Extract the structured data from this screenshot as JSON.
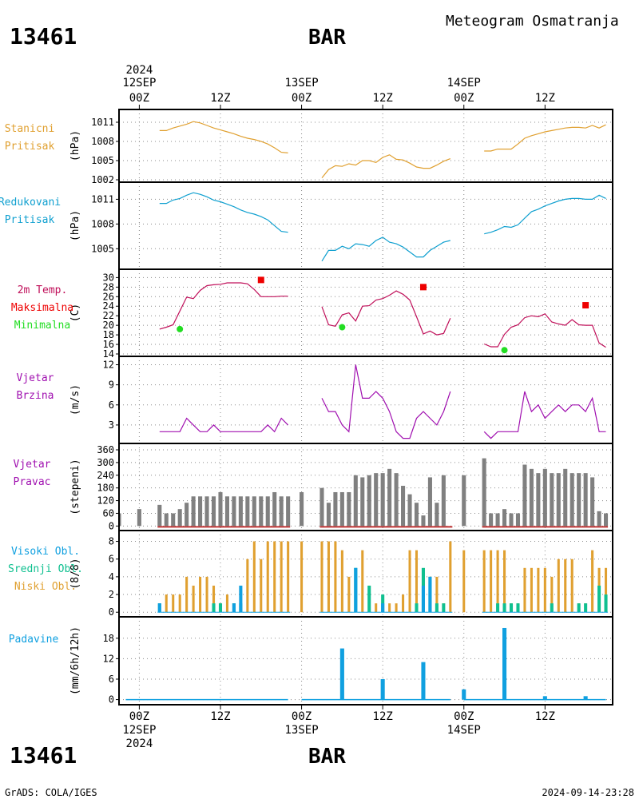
{
  "header": {
    "station_id": "13461",
    "station_name": "BAR",
    "subtitle": "Meteogram Osmatranja"
  },
  "footer": {
    "credit": "GrADS: COLA/IGES",
    "timestamp": "2024-09-14-23:28"
  },
  "time_axis": {
    "year_label": "2024",
    "tick_labels": [
      "00Z",
      "12Z",
      "00Z",
      "12Z",
      "00Z",
      "12Z"
    ],
    "tick_hours": [
      0,
      12,
      24,
      36,
      48,
      60
    ],
    "date_labels": [
      {
        "hour": 0,
        "text": "12SEP"
      },
      {
        "hour": 24,
        "text": "13SEP"
      },
      {
        "hour": 48,
        "text": "14SEP"
      }
    ],
    "hour_range": [
      -3,
      70
    ]
  },
  "colors": {
    "station_pressure": "#e0a030",
    "reduced_pressure": "#10a0d0",
    "temperature": "#c0105a",
    "max_temp": "#ee0000",
    "min_temp": "#22dd22",
    "wind": "#a010b0",
    "bars_gray": "#808080",
    "calm_line": "#c03030",
    "high_cloud": "#10a0e0",
    "mid_cloud": "#10c090",
    "low_cloud": "#e0a030",
    "precip": "#10a0e0"
  },
  "chart_data": [
    {
      "type": "line",
      "id": "station_pressure",
      "labels": [
        "Stanicni",
        "Pritisak"
      ],
      "ylabel": "(hPa)",
      "yticks": [
        1002,
        1005,
        1008,
        1011
      ],
      "ylim": [
        1002,
        1012
      ],
      "grid": true,
      "series": [
        {
          "x": [
            3,
            4,
            5,
            6,
            7,
            8,
            9,
            10,
            11,
            12,
            13,
            14,
            15,
            16,
            17,
            18,
            19,
            20,
            21,
            22
          ],
          "y": [
            1009.7,
            1009.7,
            1010.1,
            1010.4,
            1010.7,
            1011.1,
            1010.9,
            1010.5,
            1010.1,
            1009.8,
            1009.5,
            1009.2,
            1008.8,
            1008.5,
            1008.3,
            1008.0,
            1007.6,
            1007.0,
            1006.3,
            1006.2
          ]
        },
        {
          "x": [
            27,
            28,
            29,
            30,
            31,
            32,
            33,
            34,
            35,
            36,
            37,
            38,
            39,
            40,
            41,
            42,
            43,
            44,
            45,
            46
          ],
          "y": [
            1002.3,
            1003.6,
            1004.2,
            1004.1,
            1004.5,
            1004.3,
            1005.0,
            1005.0,
            1004.7,
            1005.5,
            1005.9,
            1005.2,
            1005.1,
            1004.6,
            1004.0,
            1003.8,
            1003.8,
            1004.3,
            1004.9,
            1005.3
          ]
        },
        {
          "x": [
            51,
            52,
            53,
            54,
            55,
            56,
            57,
            58,
            59,
            60,
            61,
            62,
            63,
            64,
            65,
            66,
            67,
            68,
            69
          ],
          "y": [
            1006.5,
            1006.5,
            1006.8,
            1006.8,
            1006.8,
            1007.6,
            1008.5,
            1008.9,
            1009.2,
            1009.5,
            1009.7,
            1009.9,
            1010.1,
            1010.2,
            1010.2,
            1010.1,
            1010.5,
            1010.1,
            1010.6
          ]
        }
      ]
    },
    {
      "type": "line",
      "id": "reduced_pressure",
      "labels": [
        "Redukovani",
        "Pritisak"
      ],
      "ylabel": "(hPa)",
      "yticks": [
        1005,
        1008,
        1011
      ],
      "ylim": [
        1002.8,
        1012.3
      ],
      "grid": true,
      "series": [
        {
          "x": [
            3,
            4,
            5,
            6,
            7,
            8,
            9,
            10,
            11,
            12,
            13,
            14,
            15,
            16,
            17,
            18,
            19,
            20,
            21,
            22
          ],
          "y": [
            1010.5,
            1010.5,
            1010.9,
            1011.1,
            1011.5,
            1011.8,
            1011.6,
            1011.3,
            1010.9,
            1010.7,
            1010.4,
            1010.1,
            1009.7,
            1009.4,
            1009.2,
            1008.9,
            1008.5,
            1007.8,
            1007.1,
            1007.0
          ]
        },
        {
          "x": [
            27,
            28,
            29,
            30,
            31,
            32,
            33,
            34,
            35,
            36,
            37,
            38,
            39,
            40,
            41,
            42,
            43,
            44,
            45,
            46
          ],
          "y": [
            1003.5,
            1004.8,
            1004.8,
            1005.3,
            1005.0,
            1005.6,
            1005.5,
            1005.3,
            1006.0,
            1006.4,
            1005.8,
            1005.6,
            1005.2,
            1004.6,
            1004.0,
            1004.0,
            1004.8,
            1005.3,
            1005.8,
            1006.0
          ]
        },
        {
          "x": [
            51,
            52,
            53,
            54,
            55,
            56,
            57,
            58,
            59,
            60,
            61,
            62,
            63,
            64,
            65,
            66,
            67,
            68,
            69
          ],
          "y": [
            1006.8,
            1007.0,
            1007.3,
            1007.7,
            1007.6,
            1007.9,
            1008.7,
            1009.5,
            1009.8,
            1010.2,
            1010.5,
            1010.8,
            1011.0,
            1011.1,
            1011.1,
            1011.0,
            1011.0,
            1011.5,
            1011.1
          ]
        }
      ]
    },
    {
      "type": "line",
      "id": "temperature",
      "labels": [
        "2m Temp.",
        "Maksimalna",
        "Minimalna"
      ],
      "ylabel": "(C)",
      "yticks": [
        14,
        16,
        18,
        20,
        22,
        24,
        26,
        28,
        30
      ],
      "ylim": [
        14,
        30.4
      ],
      "grid": true,
      "series": [
        {
          "x": [
            3,
            4,
            5,
            6,
            7,
            8,
            9,
            10,
            11,
            12,
            13,
            14,
            15,
            16,
            17,
            18,
            19,
            20,
            21,
            22
          ],
          "y": [
            19.2,
            19.6,
            20.1,
            23.0,
            25.9,
            25.6,
            27.3,
            28.3,
            28.5,
            28.6,
            28.9,
            28.9,
            28.9,
            28.7,
            27.5,
            26.0,
            26.0,
            26.0,
            26.1,
            26.1
          ]
        },
        {
          "x": [
            27,
            28,
            29,
            30,
            31,
            32,
            33,
            34,
            35,
            36,
            37,
            38,
            39,
            40,
            41,
            42,
            43,
            44,
            45,
            46
          ],
          "y": [
            23.9,
            20.1,
            19.8,
            22.2,
            22.6,
            20.9,
            24.0,
            24.1,
            25.3,
            25.6,
            26.3,
            27.2,
            26.5,
            25.3,
            21.8,
            18.2,
            18.8,
            18.0,
            18.3,
            21.5
          ]
        },
        {
          "x": [
            51,
            52,
            53,
            54,
            55,
            56,
            57,
            58,
            59,
            60,
            61,
            62,
            63,
            64,
            65,
            66,
            67,
            68,
            69
          ],
          "y": [
            16.1,
            15.5,
            15.5,
            18.1,
            19.6,
            20.1,
            21.6,
            22.0,
            21.8,
            22.4,
            20.7,
            20.3,
            20.0,
            21.2,
            20.1,
            20.0,
            20.0,
            16.3,
            15.4
          ]
        }
      ],
      "markers": [
        {
          "kind": "max",
          "x": 18,
          "y": 29.5
        },
        {
          "kind": "max",
          "x": 42,
          "y": 28.0
        },
        {
          "kind": "max",
          "x": 66,
          "y": 24.2
        },
        {
          "kind": "min",
          "x": 6,
          "y": 19.2
        },
        {
          "kind": "min",
          "x": 30,
          "y": 19.6
        },
        {
          "kind": "min",
          "x": 54,
          "y": 14.8
        }
      ]
    },
    {
      "type": "line",
      "id": "wind_speed",
      "labels": [
        "Vjetar",
        "Brzina"
      ],
      "ylabel": "(m/s)",
      "yticks": [
        3,
        6,
        9,
        12
      ],
      "ylim": [
        0.6,
        12.3
      ],
      "grid": true,
      "series": [
        {
          "x": [
            3,
            4,
            5,
            6,
            7,
            8,
            9,
            10,
            11,
            12,
            13,
            14,
            15,
            16,
            17,
            18,
            19,
            20,
            21,
            22
          ],
          "y": [
            2,
            2,
            2,
            2,
            4,
            3,
            2,
            2,
            3,
            2,
            2,
            2,
            2,
            2,
            2,
            2,
            3,
            2,
            4,
            3
          ]
        },
        {
          "x": [
            27,
            28,
            29,
            30,
            31,
            32,
            33,
            34,
            35,
            36,
            37,
            38,
            39,
            40,
            41,
            42,
            43,
            44,
            45,
            46
          ],
          "y": [
            7,
            5,
            5,
            3,
            2,
            12,
            7,
            7,
            8,
            7,
            5,
            2,
            1,
            1,
            4,
            5,
            4,
            3,
            5,
            8
          ]
        },
        {
          "x": [
            51,
            52,
            53,
            54,
            55,
            56,
            57,
            58,
            59,
            60,
            61,
            62,
            63,
            64,
            65,
            66,
            67,
            68,
            69
          ],
          "y": [
            2,
            1,
            2,
            2,
            2,
            2,
            8,
            5,
            6,
            4,
            5,
            6,
            5,
            6,
            6,
            5,
            7,
            2,
            2
          ]
        }
      ]
    },
    {
      "type": "bar",
      "id": "wind_direction",
      "labels": [
        "Vjetar",
        "Pravac"
      ],
      "ylabel": "(stepeni)",
      "yticks": [
        0,
        60,
        120,
        180,
        240,
        300,
        360
      ],
      "ylim": [
        -10,
        360
      ],
      "grid": true,
      "bars": {
        "x": [
          -3,
          0,
          3,
          4,
          5,
          6,
          7,
          8,
          9,
          10,
          11,
          12,
          13,
          14,
          15,
          16,
          17,
          18,
          19,
          20,
          21,
          22,
          24,
          27,
          28,
          29,
          30,
          31,
          32,
          33,
          34,
          35,
          36,
          37,
          38,
          39,
          40,
          41,
          42,
          43,
          44,
          45,
          46,
          48,
          51,
          52,
          53,
          54,
          55,
          56,
          57,
          58,
          59,
          60,
          61,
          62,
          63,
          64,
          65,
          66,
          67,
          68,
          69
        ],
        "values": [
          60,
          80,
          100,
          60,
          60,
          80,
          110,
          140,
          140,
          140,
          140,
          160,
          140,
          140,
          140,
          140,
          140,
          140,
          140,
          160,
          140,
          140,
          160,
          180,
          110,
          160,
          160,
          160,
          240,
          230,
          240,
          250,
          250,
          270,
          250,
          190,
          150,
          110,
          50,
          230,
          110,
          240,
          0,
          240,
          320,
          60,
          60,
          80,
          60,
          60,
          290,
          270,
          250,
          270,
          250,
          250,
          270,
          250,
          250,
          250,
          230,
          70,
          60
        ]
      }
    },
    {
      "type": "bar",
      "id": "cloud_cover",
      "labels": [
        "Visoki Obl.",
        "Srednji Obl.",
        "Niski Obl."
      ],
      "ylabel": "(8/8)",
      "yticks": [
        0,
        2,
        4,
        6,
        8
      ],
      "ylim": [
        -0.25,
        8.5
      ],
      "grid": true,
      "x": [
        3,
        4,
        5,
        6,
        7,
        8,
        9,
        10,
        11,
        12,
        13,
        14,
        15,
        16,
        17,
        18,
        19,
        20,
        21,
        22,
        24,
        27,
        28,
        29,
        30,
        31,
        32,
        33,
        34,
        35,
        36,
        37,
        38,
        39,
        40,
        41,
        42,
        43,
        44,
        45,
        46,
        48,
        51,
        52,
        53,
        54,
        55,
        56,
        57,
        58,
        59,
        60,
        61,
        62,
        63,
        64,
        65,
        66,
        67,
        68,
        69
      ],
      "series": [
        {
          "name": "Niski Obl.",
          "values": [
            1,
            2,
            2,
            2,
            4,
            3,
            4,
            4,
            3,
            1,
            2,
            1,
            1,
            6,
            8,
            6,
            8,
            8,
            8,
            8,
            8,
            8,
            8,
            8,
            7,
            4,
            3,
            7,
            3,
            1,
            1,
            1,
            1,
            2,
            7,
            7,
            2,
            4,
            4,
            1,
            8,
            7,
            7,
            7,
            7,
            7,
            1,
            1,
            5,
            5,
            5,
            5,
            4,
            6,
            6,
            6,
            1,
            1,
            7,
            5,
            5
          ]
        },
        {
          "name": "Srednji Obl.",
          "values": [
            1,
            0,
            0,
            0,
            0,
            0,
            0,
            0,
            1,
            1,
            0,
            1,
            1,
            0,
            0,
            0,
            0,
            0,
            0,
            0,
            0,
            0,
            0,
            0,
            0,
            0,
            5,
            0,
            3,
            0,
            2,
            0,
            0,
            0,
            0,
            1,
            5,
            4,
            1,
            1,
            0,
            0,
            0,
            0,
            1,
            1,
            1,
            1,
            0,
            0,
            0,
            0,
            1,
            0,
            0,
            0,
            1,
            1,
            0,
            3,
            2
          ]
        },
        {
          "name": "Visoki Obl.",
          "values": [
            1,
            0,
            0,
            0,
            0,
            0,
            0,
            0,
            0,
            0,
            0,
            1,
            3,
            0,
            0,
            0,
            0,
            0,
            0,
            0,
            0,
            0,
            0,
            0,
            0,
            0,
            5,
            0,
            0,
            0,
            1,
            0,
            0,
            0,
            0,
            0,
            3,
            4,
            0,
            0,
            0,
            0,
            0,
            0,
            0,
            0,
            0,
            0,
            0,
            0,
            0,
            0,
            0,
            0,
            0,
            0,
            0,
            0,
            0,
            0,
            0
          ]
        }
      ]
    },
    {
      "type": "bar",
      "id": "precipitation",
      "labels": [
        "Padavine"
      ],
      "ylabel": "(mm/6h/12h)",
      "yticks": [
        0,
        6,
        12,
        18
      ],
      "ylim": [
        -0.8,
        22.4
      ],
      "grid": true,
      "bars": {
        "x": [
          30,
          36,
          42,
          48,
          54,
          60,
          66
        ],
        "values": [
          15,
          6,
          11,
          3,
          21,
          1,
          1
        ]
      }
    }
  ]
}
